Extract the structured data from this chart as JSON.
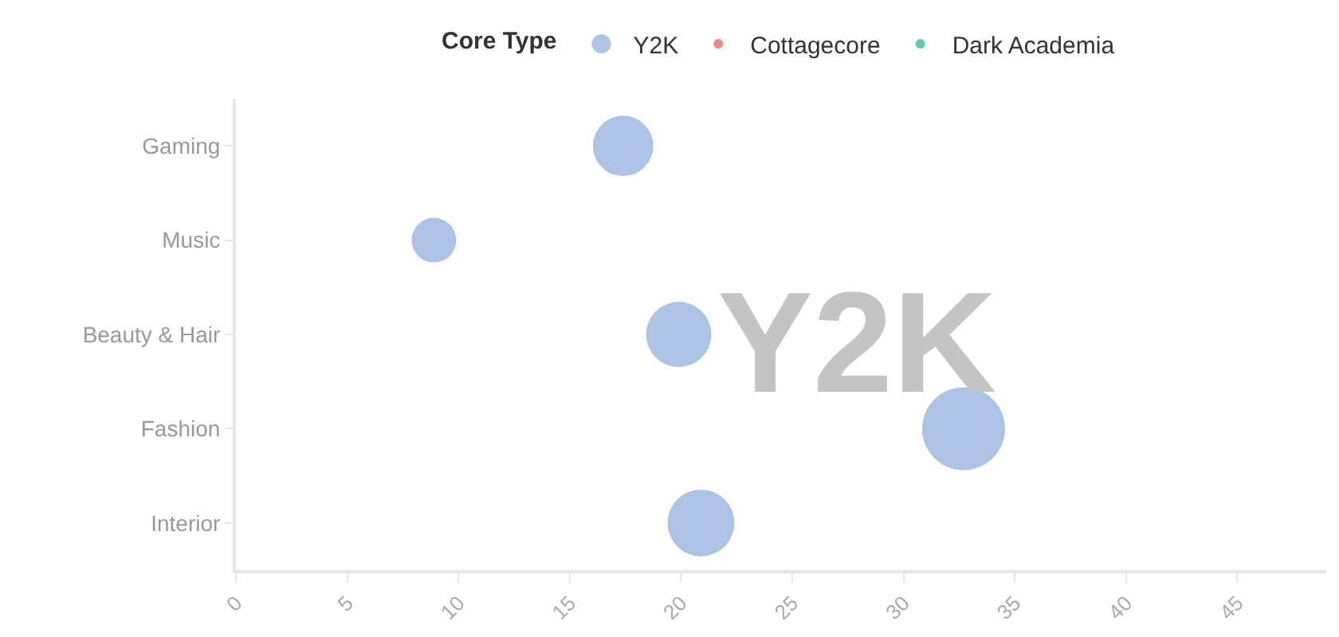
{
  "chart_data": {
    "type": "bubble",
    "legend_title": "Core Type",
    "categories": [
      "Gaming",
      "Music",
      "Beauty & Hair",
      "Fashion",
      "Interior"
    ],
    "series": [
      {
        "name": "Y2K",
        "color": "#89a9da",
        "values": [
          17.4,
          8.9,
          19.9,
          32.7,
          20.9
        ],
        "sizes": [
          0.53,
          0.29,
          0.62,
          1,
          0.65
        ]
      },
      {
        "name": "Cottagecore",
        "color": "#e8575e",
        "values": [
          null,
          null,
          null,
          null,
          null
        ],
        "sizes": [
          null,
          null,
          null,
          null,
          null
        ]
      },
      {
        "name": "Dark Academia",
        "color": "#1fb784",
        "values": [
          null,
          null,
          null,
          null,
          null
        ],
        "sizes": [
          null,
          null,
          null,
          null,
          null
        ]
      }
    ],
    "orientation": "horizontal",
    "xlim": [
      0,
      49
    ],
    "xticks": [
      0,
      5,
      10,
      15,
      20,
      25,
      30,
      35,
      40,
      45
    ],
    "annotations": [
      "Y2K"
    ],
    "grid": false,
    "legend": "top"
  }
}
